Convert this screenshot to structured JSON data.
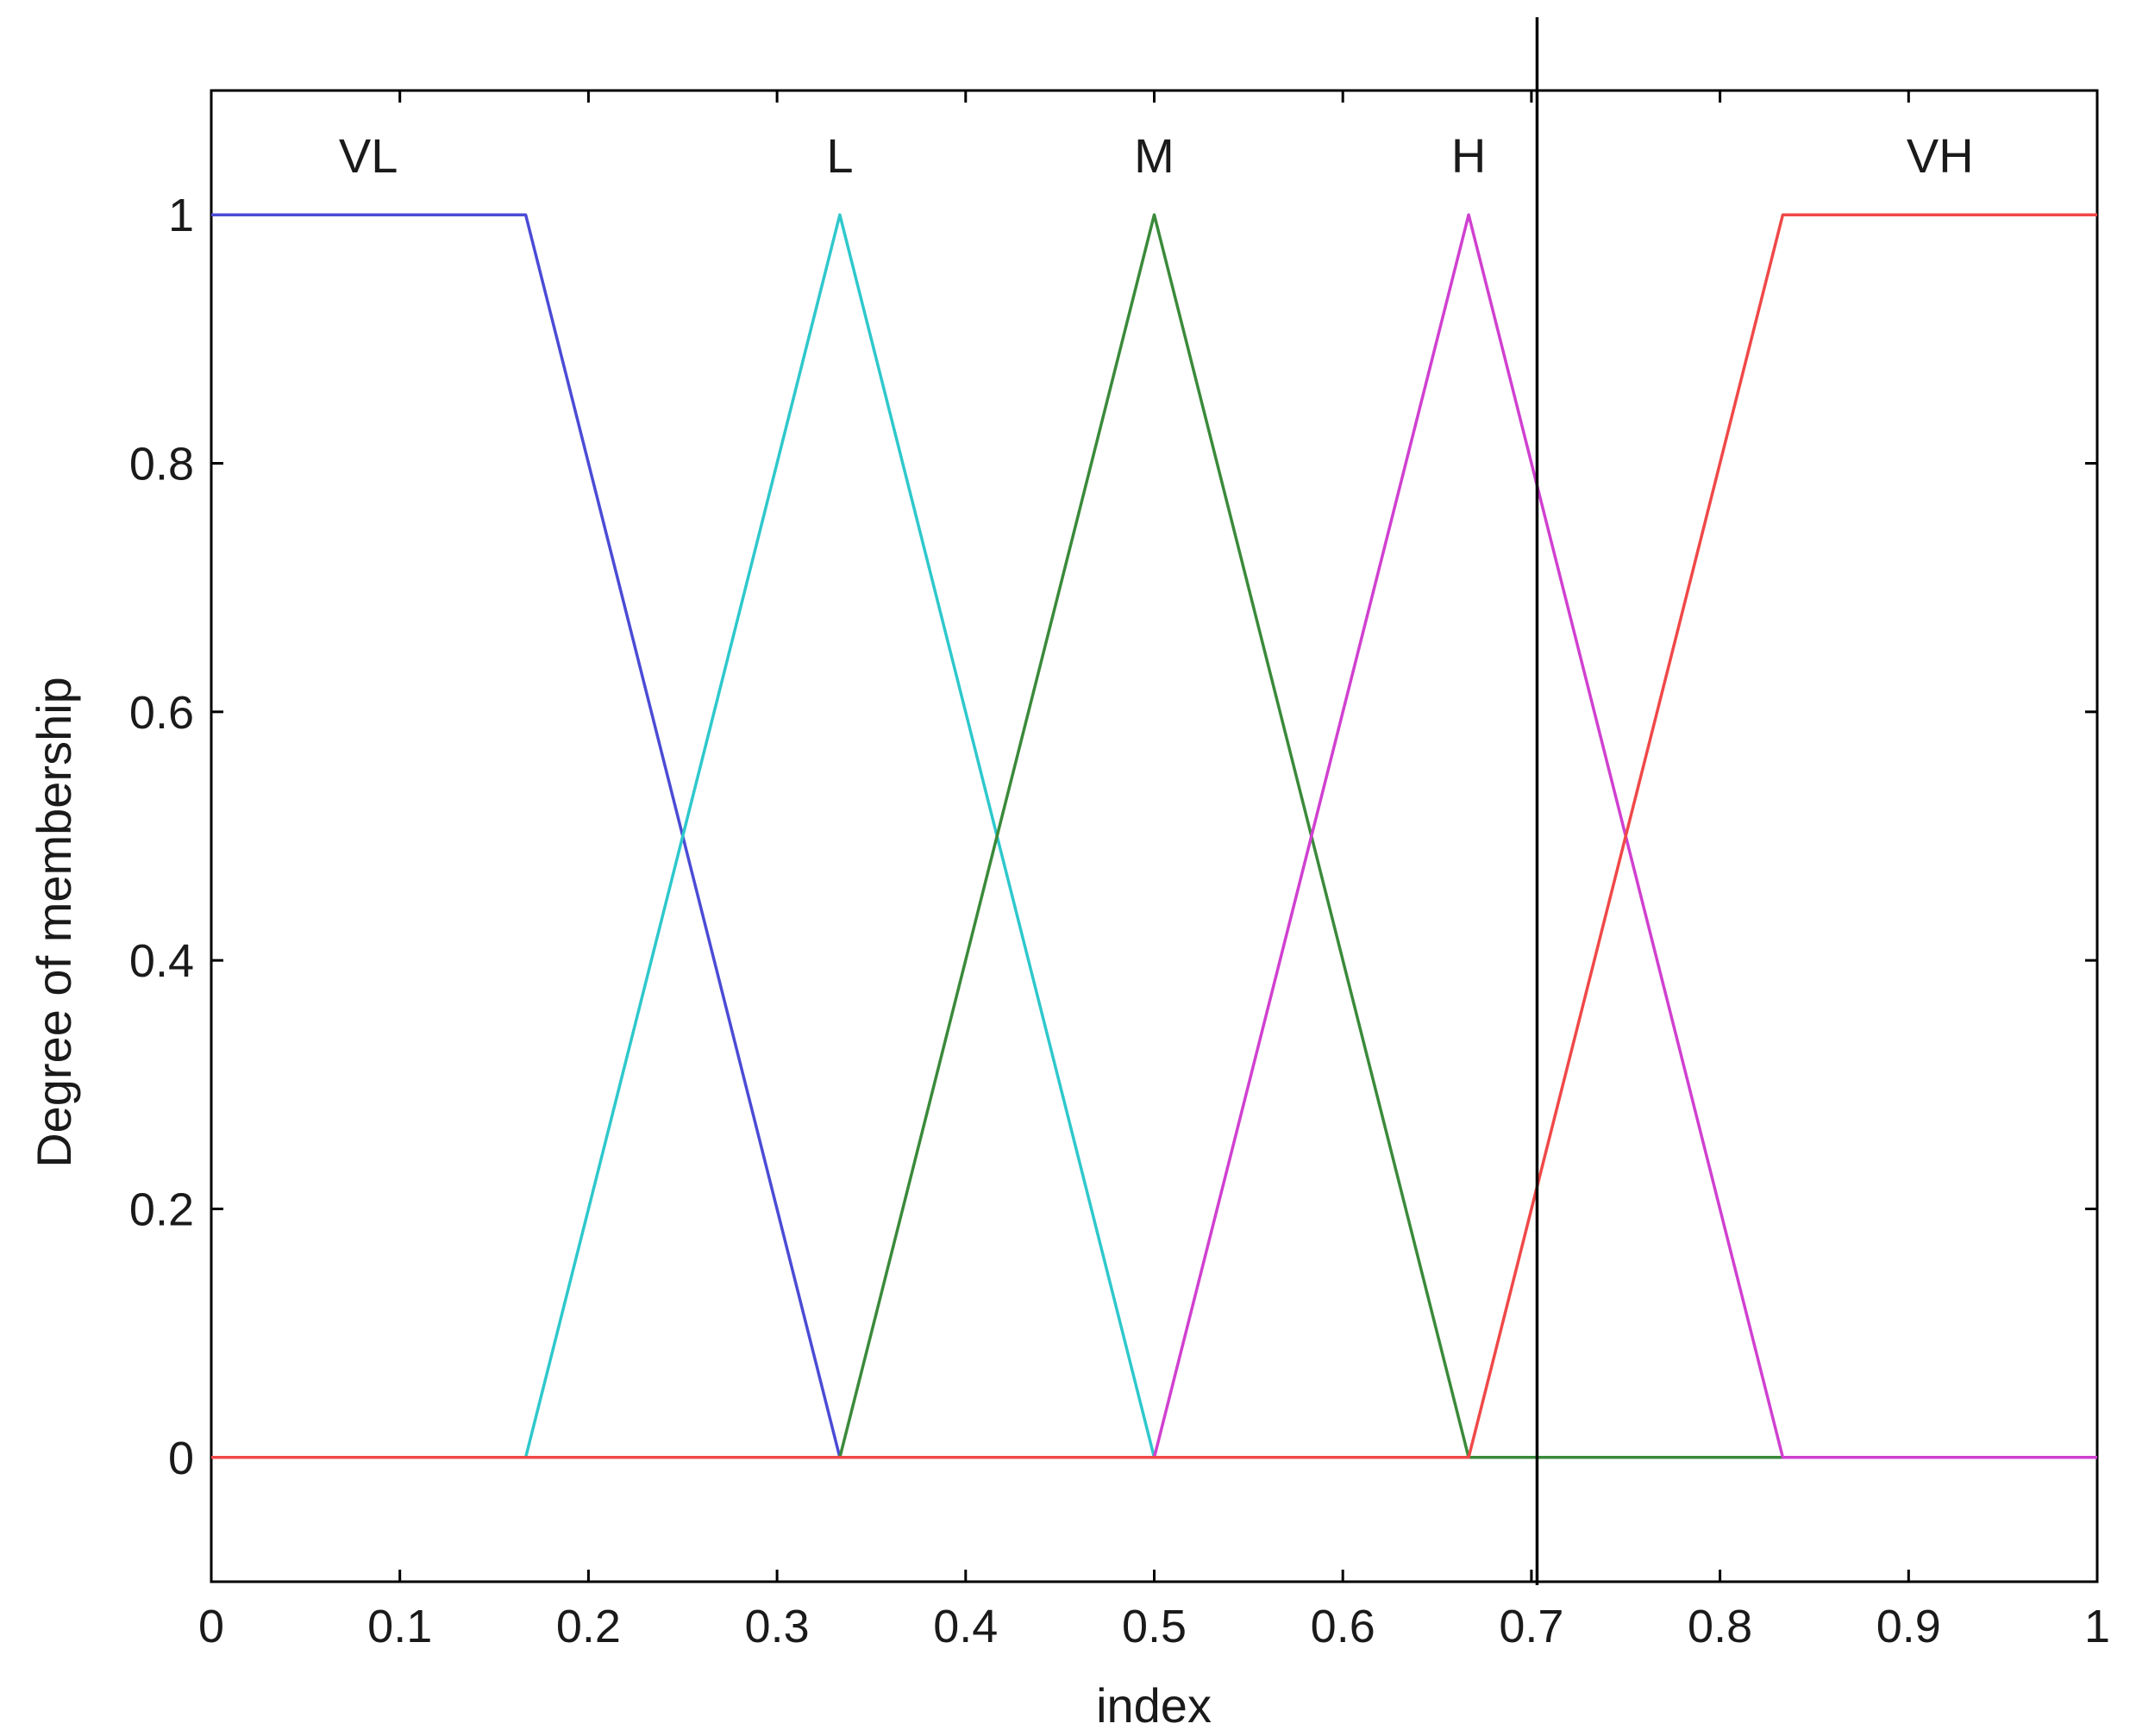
{
  "chart_data": {
    "type": "line",
    "title": "",
    "xlabel": "index",
    "ylabel": "Degree of membership",
    "xlim": [
      0,
      1
    ],
    "ylim": [
      -0.1,
      1.1
    ],
    "xticks": [
      0,
      0.1,
      0.2,
      0.3,
      0.4,
      0.5,
      0.6,
      0.7,
      0.8,
      0.9,
      1
    ],
    "xtick_labels": [
      "0",
      "0.1",
      "0.2",
      "0.3",
      "0.4",
      "0.5",
      "0.6",
      "0.7",
      "0.8",
      "0.9",
      "1"
    ],
    "yticks": [
      0,
      0.2,
      0.4,
      0.6,
      0.8,
      1
    ],
    "ytick_labels": [
      "0",
      "0.2",
      "0.4",
      "0.6",
      "0.8",
      "1"
    ],
    "grid": false,
    "legend": "none",
    "series": [
      {
        "name": "VL",
        "color": "#4b4bd6",
        "x": [
          0,
          0.1667,
          0.3333,
          1
        ],
        "y": [
          1,
          1,
          0,
          0
        ],
        "label_x": 0.0833
      },
      {
        "name": "L",
        "color": "#2ec8cc",
        "x": [
          0,
          0.1667,
          0.3333,
          0.5,
          1
        ],
        "y": [
          0,
          0,
          1,
          0,
          0
        ],
        "label_x": 0.3333
      },
      {
        "name": "M",
        "color": "#3a8a3a",
        "x": [
          0,
          0.3333,
          0.5,
          0.6667,
          1
        ],
        "y": [
          0,
          0,
          1,
          0,
          0
        ],
        "label_x": 0.5
      },
      {
        "name": "H",
        "color": "#d040d0",
        "x": [
          0,
          0.5,
          0.6667,
          0.8333,
          1
        ],
        "y": [
          0,
          0,
          1,
          0,
          0
        ],
        "label_x": 0.6667
      },
      {
        "name": "VH",
        "color": "#f04848",
        "x": [
          0,
          0.6667,
          0.8333,
          1
        ],
        "y": [
          0,
          0,
          1,
          1
        ],
        "label_x": 0.9167
      }
    ],
    "annotations": [
      {
        "type": "vertical-line",
        "x": 0.703,
        "color": "#000000"
      }
    ]
  }
}
